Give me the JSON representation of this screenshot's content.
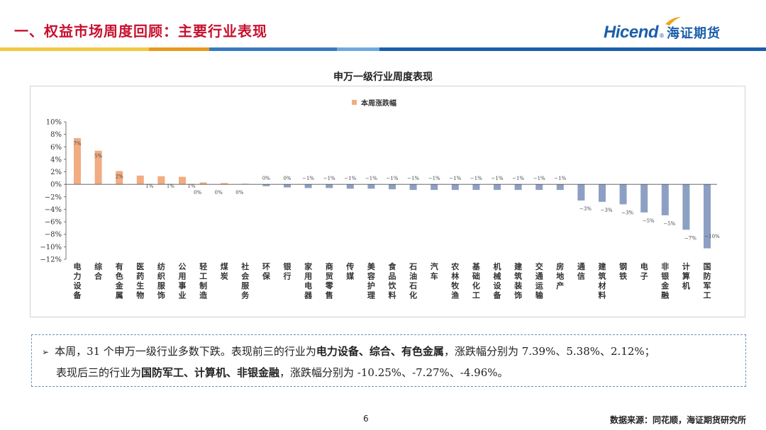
{
  "header": {
    "title": "一、权益市场周度回顾：主要行业表现",
    "logo_text": "Hicend",
    "logo_reg": "®",
    "logo_cn": "海证期货",
    "stripe_colors": [
      "#f5c842",
      "#e89a1b",
      "#3a7ac0",
      "#6fa9dc",
      "#1b5fab"
    ]
  },
  "chart_data": {
    "type": "bar",
    "title": "申万一级行业周度表现",
    "legend": {
      "label": "本周涨跌幅",
      "position": "top"
    },
    "series": [
      {
        "name": "本周涨跌幅",
        "values": [
          7.39,
          5.38,
          2.12,
          1.4,
          1.3,
          1.2,
          0.3,
          0.2,
          0.1,
          -0.3,
          -0.5,
          -0.6,
          -0.6,
          -0.7,
          -0.7,
          -0.8,
          -0.9,
          -0.9,
          -0.9,
          -0.9,
          -0.9,
          -0.9,
          -0.9,
          -0.9,
          -2.6,
          -2.8,
          -3.2,
          -4.5,
          -4.96,
          -7.27,
          -10.25
        ]
      }
    ],
    "categories": [
      "电力设备",
      "综合",
      "有色金属",
      "医药生物",
      "纺织服饰",
      "公用事业",
      "轻工制造",
      "煤炭",
      "社会服务",
      "环保",
      "银行",
      "家用电器",
      "商贸零售",
      "传媒",
      "美容护理",
      "食品饮料",
      "石油石化",
      "汽车",
      "农林牧渔",
      "基础化工",
      "机械设备",
      "建筑装饰",
      "交通运输",
      "房地产",
      "通信",
      "建筑材料",
      "钢铁",
      "电子",
      "非银金融",
      "计算机",
      "国防军工"
    ],
    "data_labels": [
      "7%",
      "5%",
      "2%",
      "1%",
      "1%",
      "1%",
      "0%",
      "0%",
      "0%",
      "0%",
      "0%",
      "−1%",
      "−1%",
      "−1%",
      "−1%",
      "−1%",
      "−1%",
      "−1%",
      "−1%",
      "−1%",
      "−1%",
      "−1%",
      "−1%",
      "−1%",
      "−3%",
      "−3%",
      "−3%",
      "−5%",
      "−5%",
      "−7%",
      "−10%"
    ],
    "ylim": [
      -12,
      10
    ],
    "yticks": [
      10,
      8,
      6,
      4,
      2,
      0,
      -2,
      -4,
      -6,
      -8,
      -10,
      -12
    ],
    "ytick_labels": [
      "10%",
      "8%",
      "6%",
      "4%",
      "2%",
      "0%",
      "−2%",
      "−4%",
      "−6%",
      "−8%",
      "−10%",
      "−12%"
    ],
    "positive_color": "#f1ac82",
    "negative_color": "#8da0c4",
    "grid": false
  },
  "note": {
    "arrow": "➢",
    "line1_prefix": "本周，31 个申万一级行业多数下跌。表现前三的行业为",
    "line1_bold": "电力设备、综合、有色金属",
    "line1_suffix": "，涨跌幅分别为 7.39%、5.38%、2.12%；",
    "line2_prefix": "表现后三的行业为",
    "line2_bold": "国防军工、计算机、非银金融",
    "line2_suffix": "，涨跌幅分别为 -10.25%、-7.27%、-4.96%。"
  },
  "footer": {
    "page_number": "6",
    "source": "数据来源：同花顺，海证期货研究所"
  }
}
